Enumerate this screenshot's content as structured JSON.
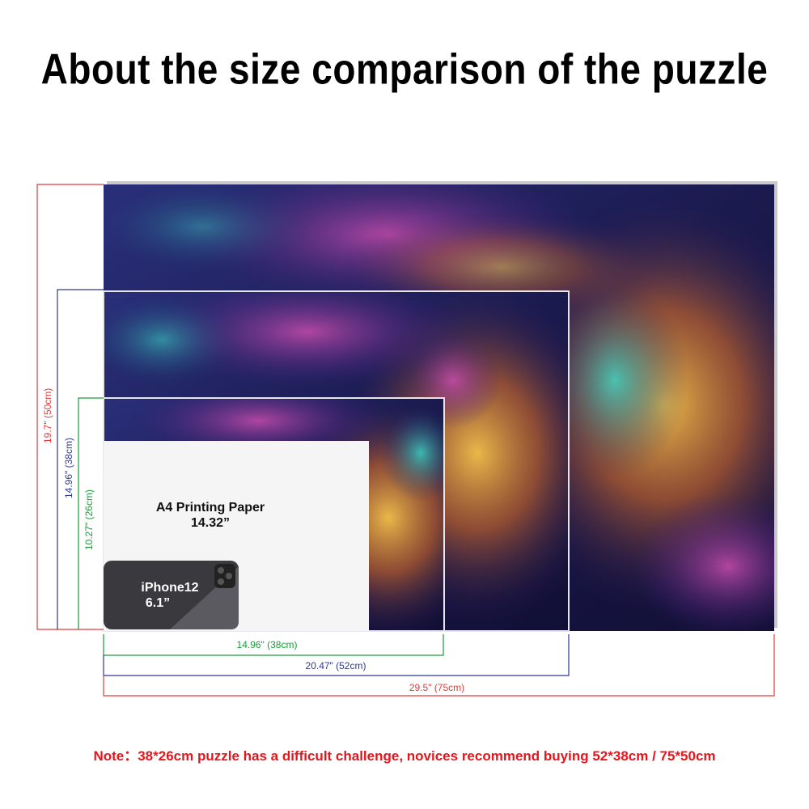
{
  "header": {
    "title": "About the size comparison of the puzzle"
  },
  "heights": [
    "19.7\" (50cm)",
    "14.96\" (38cm)",
    "10.27\" (26cm)"
  ],
  "widths": [
    "14.96\" (38cm)",
    "20.47\" (52cm)",
    "29.5\" (75cm)"
  ],
  "a4": {
    "label": "A4 Printing Paper",
    "size": "14.32”"
  },
  "phone": {
    "label": "iPhone12",
    "size": "6.1”"
  },
  "note": "Note：38*26cm puzzle has a difficult challenge, novices recommend buying 52*38cm / 75*50cm"
}
